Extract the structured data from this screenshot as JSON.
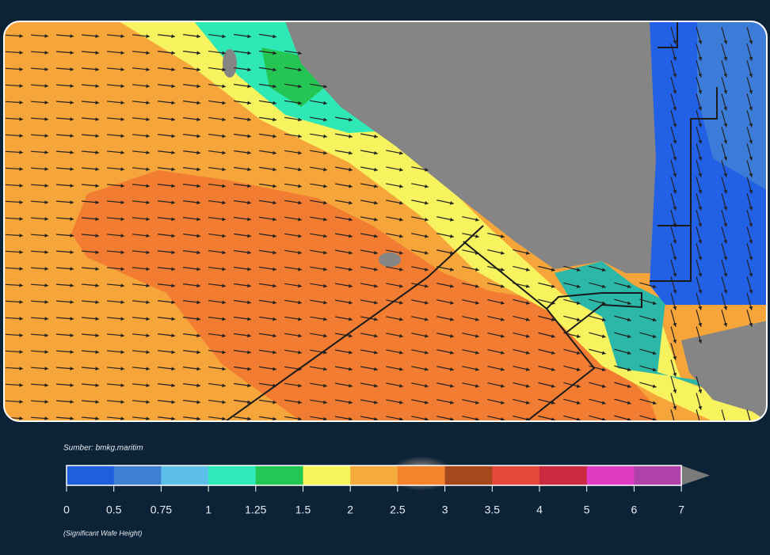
{
  "source": "Sumber: bmkg.maritim",
  "legend": {
    "ticks": [
      0,
      0.5,
      0.75,
      1,
      1.25,
      1.5,
      2,
      2.5,
      3,
      3.5,
      4,
      5,
      6,
      7
    ],
    "colors": [
      "#1f5fdc",
      "#3d7fd0",
      "#5cbfe8",
      "#2eeab8",
      "#22c853",
      "#f7f55c",
      "#f6ab3e",
      "#f5822c",
      "#a6471c",
      "#e6473b",
      "#c92a3e",
      "#df3bc3",
      "#b042aa"
    ],
    "over_color": "#7a7a7a"
  },
  "note": "(Significant Wafe Height)"
}
